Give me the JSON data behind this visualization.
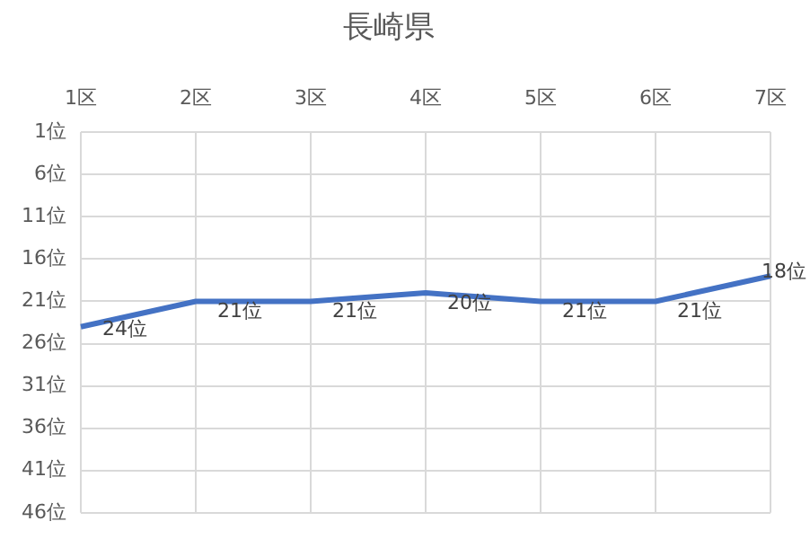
{
  "chart_data": {
    "type": "line",
    "title": "長崎県",
    "categories": [
      "1区",
      "2区",
      "3区",
      "4区",
      "5区",
      "6区",
      "7区"
    ],
    "series": [
      {
        "color": "#4472c4",
        "values": [
          24,
          21,
          21,
          20,
          21,
          21,
          18
        ],
        "value_labels": [
          "24位",
          "21位",
          "21位",
          "20位",
          "21位",
          "21位",
          "18位"
        ]
      }
    ],
    "ylim": [
      46,
      1
    ],
    "yticks": [
      {
        "value": 1,
        "label": "1位"
      },
      {
        "value": 6,
        "label": "6位"
      },
      {
        "value": 11,
        "label": "11位"
      },
      {
        "value": 16,
        "label": "16位"
      },
      {
        "value": 21,
        "label": "21位"
      },
      {
        "value": 26,
        "label": "26位"
      },
      {
        "value": 31,
        "label": "31位"
      },
      {
        "value": 36,
        "label": "36位"
      },
      {
        "value": 41,
        "label": "41位"
      },
      {
        "value": 46,
        "label": "46位"
      }
    ],
    "grid": true,
    "legend": false,
    "marker": "none",
    "line_style": "solid"
  }
}
